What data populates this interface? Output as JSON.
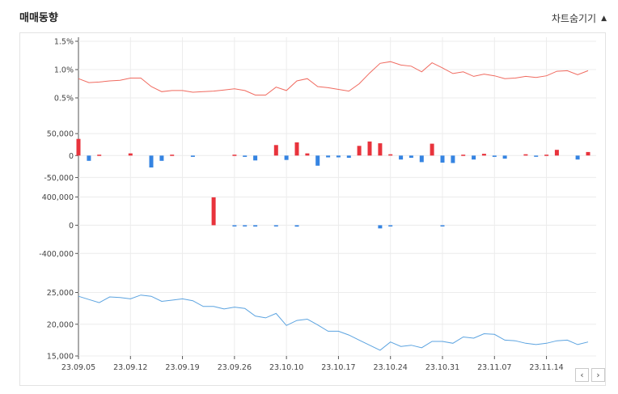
{
  "header": {
    "title": "매매동향",
    "toggle_label": "차트숨기기",
    "toggle_icon": "triangle-up-icon"
  },
  "nav": {
    "prev": "‹",
    "next": "›"
  },
  "colors": {
    "up": "#e8333c",
    "down": "#3584e2",
    "line_top": "#f06a5f",
    "line_bottom": "#5ba3e0",
    "grid": "#ececec"
  },
  "chart_data": [
    {
      "type": "line",
      "name": "rate",
      "ylim": [
        0.0,
        1.5
      ],
      "yticks": [
        "1.5%",
        "1.0%",
        "0.5%"
      ],
      "ytick_values": [
        1.5,
        1.0,
        0.5
      ],
      "values": [
        0.84,
        0.77,
        0.78,
        0.8,
        0.81,
        0.85,
        0.85,
        0.7,
        0.61,
        0.63,
        0.63,
        0.6,
        0.61,
        0.62,
        0.64,
        0.66,
        0.63,
        0.55,
        0.55,
        0.69,
        0.63,
        0.8,
        0.84,
        0.7,
        0.68,
        0.65,
        0.62,
        0.75,
        0.94,
        1.11,
        1.14,
        1.08,
        1.06,
        0.96,
        1.12,
        1.03,
        0.93,
        0.96,
        0.88,
        0.92,
        0.89,
        0.84,
        0.85,
        0.88,
        0.86,
        0.89,
        0.97,
        0.98,
        0.91,
        0.98
      ]
    },
    {
      "type": "bar",
      "name": "net-volume-1",
      "ylim": [
        -75000,
        65000
      ],
      "yticks": [
        "50,000",
        "0",
        "-50,000"
      ],
      "ytick_values": [
        50000,
        0,
        -50000
      ],
      "values": [
        38000,
        -12000,
        2000,
        0,
        0,
        5000,
        0,
        -27000,
        -12000,
        2000,
        0,
        -3000,
        0,
        0,
        0,
        2000,
        -3000,
        -11000,
        0,
        24000,
        -10000,
        30000,
        5000,
        -23000,
        -4000,
        -4000,
        -5000,
        22000,
        32000,
        28000,
        3000,
        -9000,
        -5000,
        -15000,
        27000,
        -16000,
        -17000,
        2000,
        -9000,
        4000,
        -3000,
        -7000,
        0,
        3000,
        -2000,
        2000,
        13000,
        0,
        -9000,
        8000
      ]
    },
    {
      "type": "bar",
      "name": "net-volume-2",
      "ylim": [
        -500000,
        520000
      ],
      "yticks": [
        "400,000",
        "0",
        "-400,000"
      ],
      "ytick_values": [
        400000,
        0,
        -400000
      ],
      "values": [
        0,
        0,
        0,
        0,
        0,
        0,
        0,
        0,
        0,
        0,
        0,
        0,
        0,
        395000,
        0,
        -15000,
        -15000,
        -18000,
        0,
        -12000,
        0,
        -20000,
        0,
        0,
        0,
        0,
        0,
        0,
        0,
        -45000,
        -15000,
        0,
        0,
        0,
        0,
        -15000,
        0,
        0,
        0,
        0,
        0,
        0,
        0,
        0,
        0,
        0,
        0,
        0,
        0,
        0
      ]
    },
    {
      "type": "line",
      "name": "price",
      "ylim": [
        15000,
        28000
      ],
      "yticks": [
        "25,000",
        "20,000",
        "15,000"
      ],
      "ytick_values": [
        25000,
        20000,
        15000
      ],
      "x_labels": [
        "23.09.05",
        "23.09.12",
        "23.09.19",
        "23.09.26",
        "23.10.10",
        "23.10.17",
        "23.10.24",
        "23.10.31",
        "23.11.07",
        "23.11.14"
      ],
      "x_label_index": [
        0,
        5,
        10,
        15,
        20,
        25,
        30,
        35,
        40,
        45
      ],
      "values": [
        24400,
        23900,
        23400,
        24300,
        24200,
        24000,
        24600,
        24400,
        23600,
        23800,
        24000,
        23700,
        22800,
        22800,
        22400,
        22700,
        22500,
        21300,
        21000,
        21700,
        19800,
        20600,
        20800,
        19900,
        18900,
        18900,
        18300,
        17500,
        16700,
        15900,
        17200,
        16500,
        16700,
        16300,
        17300,
        17300,
        17000,
        18000,
        17800,
        18500,
        18400,
        17500,
        17400,
        17000,
        16800,
        17000,
        17400,
        17500,
        16800,
        17200
      ]
    }
  ]
}
